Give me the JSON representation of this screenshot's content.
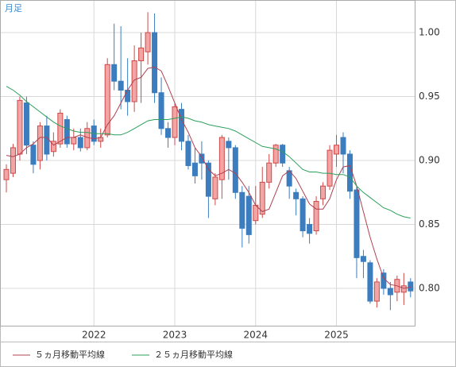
{
  "chart_data": {
    "type": "candlestick",
    "title": "月足",
    "categories": [
      null,
      null,
      null,
      null,
      null,
      null,
      null,
      null,
      null,
      null,
      null,
      null,
      null,
      "2022",
      null,
      null,
      null,
      null,
      null,
      null,
      null,
      null,
      null,
      null,
      null,
      "2023",
      null,
      null,
      null,
      null,
      null,
      null,
      null,
      null,
      null,
      null,
      null,
      "2024",
      null,
      null,
      null,
      null,
      null,
      null,
      null,
      null,
      null,
      null,
      null,
      "2025",
      null,
      null,
      null,
      null,
      null,
      null,
      null,
      null,
      null,
      null,
      null
    ],
    "open": [
      0.885,
      0.89,
      0.905,
      0.945,
      0.912,
      0.9,
      0.927,
      0.907,
      0.913,
      0.932,
      0.913,
      0.918,
      0.91,
      0.927,
      0.915,
      0.92,
      0.975,
      0.962,
      0.955,
      0.946,
      0.978,
      0.985,
      1.0,
      0.953,
      0.925,
      0.918,
      0.94,
      0.915,
      0.898,
      0.905,
      0.898,
      0.87,
      0.885,
      0.915,
      0.91,
      0.875,
      0.872,
      0.853,
      0.858,
      0.883,
      0.898,
      0.912,
      0.892,
      0.875,
      0.87,
      0.85,
      0.845,
      0.87,
      0.88,
      0.905,
      0.918,
      0.905,
      0.877,
      0.825,
      0.82,
      0.79,
      0.812,
      0.8,
      0.797,
      0.797,
      0.805
    ],
    "high": [
      0.897,
      0.913,
      0.95,
      0.95,
      0.915,
      0.93,
      0.935,
      0.922,
      0.94,
      0.935,
      0.925,
      0.925,
      0.93,
      0.932,
      0.925,
      0.98,
      1.007,
      1.005,
      0.98,
      0.99,
      1.0,
      1.016,
      1.015,
      0.965,
      0.93,
      0.945,
      0.945,
      0.92,
      0.91,
      0.915,
      0.9,
      0.89,
      0.92,
      0.918,
      0.912,
      0.88,
      0.88,
      0.88,
      0.895,
      0.905,
      0.913,
      0.913,
      0.895,
      0.878,
      0.872,
      0.855,
      0.872,
      0.883,
      0.912,
      0.92,
      0.922,
      0.908,
      0.88,
      0.83,
      0.822,
      0.808,
      0.815,
      0.805,
      0.81,
      0.812,
      0.808
    ],
    "low": [
      0.875,
      0.887,
      0.9,
      0.905,
      0.89,
      0.893,
      0.9,
      0.903,
      0.91,
      0.91,
      0.908,
      0.907,
      0.908,
      0.912,
      0.91,
      0.918,
      0.955,
      0.94,
      0.935,
      0.938,
      0.945,
      0.975,
      0.945,
      0.92,
      0.91,
      0.912,
      0.908,
      0.893,
      0.882,
      0.885,
      0.855,
      0.865,
      0.87,
      0.885,
      0.87,
      0.832,
      0.835,
      0.85,
      0.855,
      0.878,
      0.895,
      0.895,
      0.87,
      0.857,
      0.84,
      0.835,
      0.842,
      0.865,
      0.877,
      0.895,
      0.89,
      0.87,
      0.808,
      0.808,
      0.788,
      0.785,
      0.795,
      0.783,
      0.79,
      0.787,
      0.793
    ],
    "close": [
      0.893,
      0.91,
      0.947,
      0.912,
      0.897,
      0.927,
      0.905,
      0.915,
      0.937,
      0.913,
      0.918,
      0.91,
      0.925,
      0.915,
      0.918,
      0.975,
      0.962,
      0.955,
      0.946,
      0.978,
      0.988,
      1.0,
      0.953,
      0.925,
      0.918,
      0.942,
      0.915,
      0.896,
      0.888,
      0.898,
      0.872,
      0.887,
      0.918,
      0.91,
      0.875,
      0.847,
      0.842,
      0.865,
      0.883,
      0.898,
      0.912,
      0.898,
      0.88,
      0.87,
      0.845,
      0.843,
      0.868,
      0.88,
      0.908,
      0.912,
      0.905,
      0.876,
      0.824,
      0.821,
      0.79,
      0.805,
      0.8,
      0.795,
      0.807,
      0.802,
      0.798
    ],
    "up_color": "#d04848",
    "up_fill": "#f2a5a5",
    "down_color": "#3b7dbf",
    "series": [
      {
        "name": "５ヵ月移動平均線",
        "color": "#b04050",
        "values": [
          0.904,
          0.903,
          0.905,
          0.91,
          0.913,
          0.918,
          0.918,
          0.912,
          0.915,
          0.918,
          0.918,
          0.92,
          0.918,
          0.917,
          0.918,
          0.928,
          0.935,
          0.945,
          0.955,
          0.963,
          0.965,
          0.972,
          0.973,
          0.97,
          0.958,
          0.945,
          0.932,
          0.922,
          0.91,
          0.903,
          0.893,
          0.888,
          0.89,
          0.893,
          0.89,
          0.883,
          0.875,
          0.865,
          0.86,
          0.862,
          0.875,
          0.888,
          0.892,
          0.886,
          0.876,
          0.866,
          0.862,
          0.862,
          0.87,
          0.885,
          0.895,
          0.896,
          0.88,
          0.86,
          0.84,
          0.823,
          0.808,
          0.803,
          0.802,
          0.8,
          0.801
        ]
      },
      {
        "name": "２５ヵ月移動平均線",
        "color": "#2aa05a",
        "values": [
          0.958,
          0.955,
          0.951,
          0.946,
          0.942,
          0.938,
          0.934,
          0.93,
          0.927,
          0.925,
          0.923,
          0.922,
          0.922,
          0.921,
          0.921,
          0.921,
          0.92,
          0.92,
          0.922,
          0.925,
          0.928,
          0.931,
          0.932,
          0.932,
          0.932,
          0.933,
          0.934,
          0.933,
          0.931,
          0.93,
          0.928,
          0.927,
          0.926,
          0.925,
          0.923,
          0.92,
          0.917,
          0.914,
          0.911,
          0.91,
          0.909,
          0.907,
          0.903,
          0.898,
          0.893,
          0.891,
          0.891,
          0.89,
          0.89,
          0.889,
          0.889,
          0.887,
          0.88,
          0.875,
          0.871,
          0.867,
          0.863,
          0.861,
          0.858,
          0.856,
          0.855
        ]
      }
    ],
    "ylim": [
      0.7708,
      1.0255
    ],
    "yticks": [
      {
        "value": 0.8,
        "label": "0.80"
      },
      0.85,
      {
        "value": 0.9,
        "label": "0.90"
      },
      0.95,
      {
        "value": 1,
        "label": "1.00"
      }
    ],
    "grid": true
  }
}
